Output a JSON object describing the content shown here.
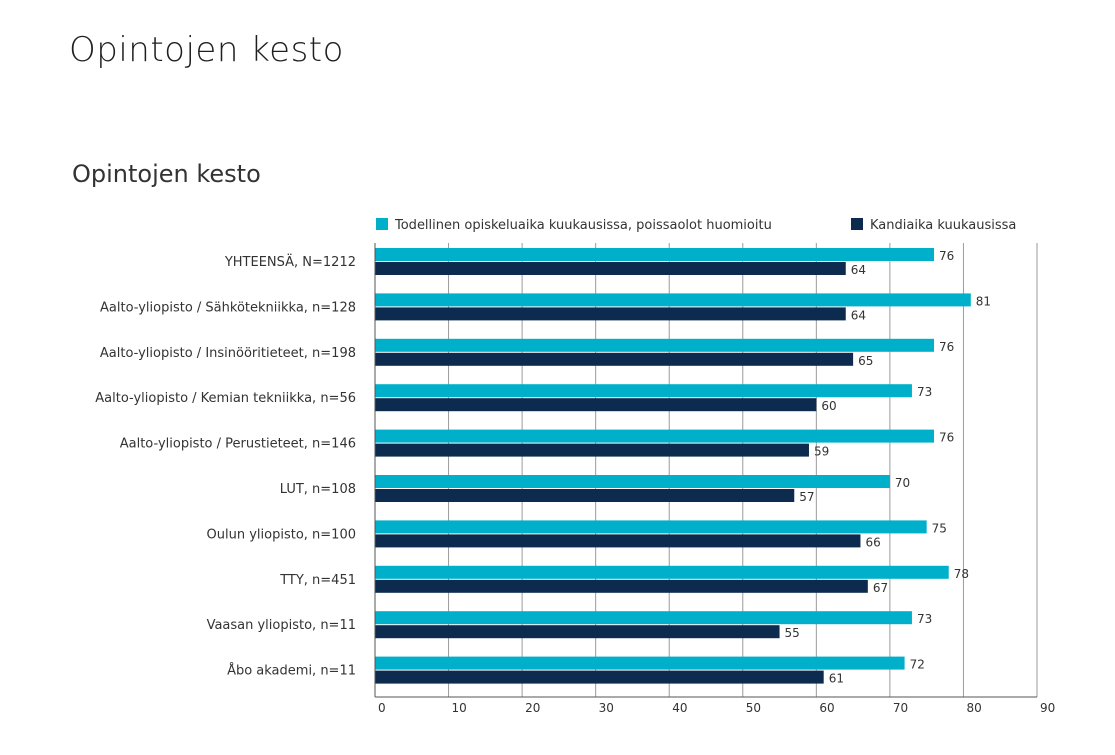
{
  "page": {
    "title": "Opintojen kesto"
  },
  "chart_data": {
    "type": "bar",
    "orientation": "horizontal",
    "title": "Opintojen kesto",
    "categories": [
      "YHTEENSÄ, N=1212",
      "Aalto-yliopisto / Sähkötekniikka, n=128",
      "Aalto-yliopisto / Insinööritieteet, n=198",
      "Aalto-yliopisto / Kemian tekniikka, n=56",
      "Aalto-yliopisto / Perustieteet, n=146",
      "LUT, n=108",
      "Oulun yliopisto, n=100",
      "TTY, n=451",
      "Vaasan yliopisto, n=11",
      "Åbo akademi, n=11"
    ],
    "series": [
      {
        "name": "Todellinen opiskeluaika kuukausissa, poissaolot huomioitu",
        "color": "#00b0ca",
        "values": [
          76,
          81,
          76,
          73,
          76,
          70,
          75,
          78,
          73,
          72
        ]
      },
      {
        "name": "Kandiaika kuukausissa",
        "color": "#0d2b4e",
        "values": [
          64,
          64,
          65,
          60,
          59,
          57,
          66,
          67,
          55,
          61
        ]
      }
    ],
    "xlim": [
      0,
      90
    ],
    "xticks": [
      0,
      10,
      20,
      30,
      40,
      50,
      60,
      70,
      80,
      90
    ],
    "grid": true,
    "legend_position": "top"
  }
}
